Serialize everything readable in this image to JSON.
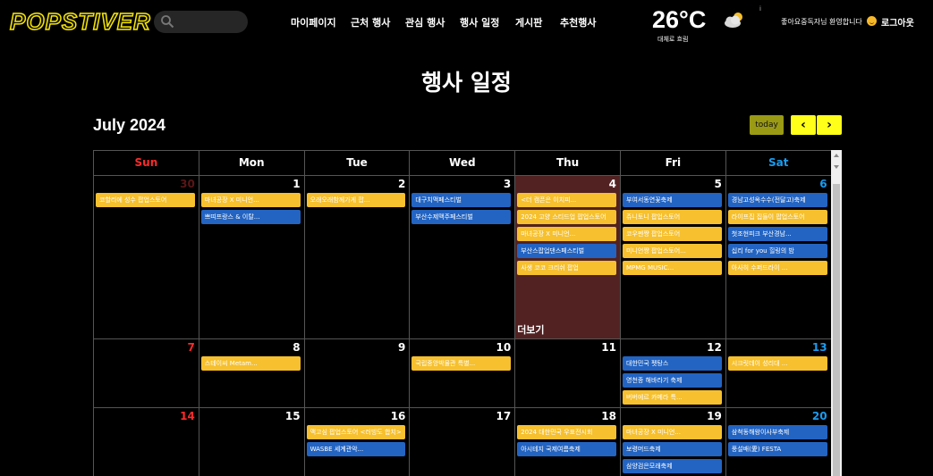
{
  "header": {
    "logo": "POPSTIVER",
    "nav": [
      "마이페이지",
      "근처 행사",
      "관심 행사",
      "행사 일정",
      "게시판",
      "추천행사"
    ],
    "weather": {
      "temp": "26°C",
      "desc": "대체로 흐림",
      "info": "i"
    },
    "welcome": "좋아요중독자님 환영합니다",
    "logout": "로그아웃"
  },
  "page": {
    "title": "행사 일정"
  },
  "calendar": {
    "month": "July 2024",
    "today_label": "today",
    "prev_label": "‹",
    "next_label": "›",
    "more_label": "더보기",
    "weekdays": [
      "Sun",
      "Mon",
      "Tue",
      "Wed",
      "Thu",
      "Fri",
      "Sat"
    ],
    "weekday_colors": [
      "#ff2a2a",
      "#ffffff",
      "#ffffff",
      "#ffffff",
      "#ffffff",
      "#ffffff",
      "#1a9cf0"
    ],
    "weeks": [
      [
        {
          "day": "30",
          "other": true,
          "events": [
            {
              "t": "코할리에 성수 팝업스토어",
              "c": "y"
            }
          ]
        },
        {
          "day": "1",
          "events": [
            {
              "t": "마녀공장 X 미니언...",
              "c": "y"
            },
            {
              "t": "쁘띠프랑스 & 이탈...",
              "c": "b"
            }
          ]
        },
        {
          "day": "2",
          "events": [
            {
              "t": "오래오래함께가게 팝...",
              "c": "y"
            }
          ]
        },
        {
          "day": "3",
          "events": [
            {
              "t": "대구치맥페스티벌",
              "c": "b"
            },
            {
              "t": "부산수제맥주페스티벌",
              "c": "b"
            }
          ]
        },
        {
          "day": "4",
          "today": true,
          "more": true,
          "events": [
            {
              "t": "<더 캠픈은 이치피...",
              "c": "y"
            },
            {
              "t": "2024 고양 스티드업 팝업스토어",
              "c": "y"
            },
            {
              "t": "마녀공장 X 미니언...",
              "c": "y"
            },
            {
              "t": "부산스팝업댄스페스티벌",
              "c": "b"
            },
            {
              "t": "사생 코코 크리쉬 팝업",
              "c": "y"
            }
          ]
        },
        {
          "day": "5",
          "events": [
            {
              "t": "부여서동연꽃축제",
              "c": "b"
            },
            {
              "t": "쥬니토니 팝업스토어",
              "c": "y"
            },
            {
              "t": "코우펜쨩 팝업스토어",
              "c": "y"
            },
            {
              "t": "미니언쨩 팝업스토어...",
              "c": "y"
            },
            {
              "t": "MPMG MUSIC...",
              "c": "y"
            }
          ]
        },
        {
          "day": "6",
          "events": [
            {
              "t": "경남고성옥수수(전달고)축제",
              "c": "b"
            },
            {
              "t": "라이프집 집들이 팝업스토어",
              "c": "y"
            },
            {
              "t": "첫조현피크 부산경남...",
              "c": "b"
            },
            {
              "t": "십리 for you 힐링의 밤",
              "c": "b"
            },
            {
              "t": "아사히 수퍼드라이 ...",
              "c": "y"
            }
          ]
        }
      ],
      [
        {
          "day": "7",
          "events": []
        },
        {
          "day": "8",
          "events": [
            {
              "t": "스테이씨 Metam...",
              "c": "y"
            }
          ]
        },
        {
          "day": "9",
          "events": []
        },
        {
          "day": "10",
          "events": [
            {
              "t": "국립중앙박물관 특별...",
              "c": "y"
            }
          ]
        },
        {
          "day": "11",
          "events": []
        },
        {
          "day": "12",
          "events": [
            {
              "t": "대한민국 펫탕스",
              "c": "b"
            },
            {
              "t": "영천종 해바라기 축제",
              "c": "b"
            },
            {
              "t": "버버에르 카메라 특...",
              "c": "y"
            }
          ]
        },
        {
          "day": "13",
          "events": [
            {
              "t": "시크릿데이 성리대 ...",
              "c": "y"
            }
          ]
        }
      ],
      [
        {
          "day": "14",
          "events": []
        },
        {
          "day": "15",
          "events": []
        },
        {
          "day": "16",
          "events": [
            {
              "t": "맥고심 팝업스토어 <러빙도 합치>",
              "c": "y"
            },
            {
              "t": "WASBE 세계관악...",
              "c": "b"
            }
          ]
        },
        {
          "day": "17",
          "events": []
        },
        {
          "day": "18",
          "events": [
            {
              "t": "2024 대한민국 우표전시회",
              "c": "y"
            },
            {
              "t": "아시테지 국제여름축제",
              "c": "b"
            }
          ]
        },
        {
          "day": "19",
          "events": [
            {
              "t": "마녀공장 X 미니언...",
              "c": "y"
            },
            {
              "t": "보령머드축제",
              "c": "b"
            },
            {
              "t": "삼양검은모래축제",
              "c": "b"
            }
          ]
        },
        {
          "day": "20",
          "events": [
            {
              "t": "삼척동해왕이사부축제",
              "c": "b"
            },
            {
              "t": "풍설배(愛) FESTA",
              "c": "b"
            }
          ]
        }
      ]
    ]
  }
}
